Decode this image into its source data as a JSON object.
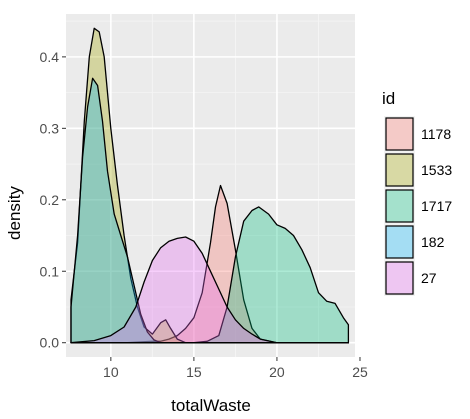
{
  "chart_data": {
    "type": "area",
    "xlabel": "totalWaste",
    "ylabel": "density",
    "xlim": [
      7.3,
      24.7
    ],
    "ylim": [
      -0.02,
      0.46
    ],
    "x_ticks": [
      10,
      15,
      20,
      25
    ],
    "y_ticks": [
      0.0,
      0.1,
      0.2,
      0.3,
      0.4
    ],
    "x_tick_labels": [
      "10",
      "15",
      "20",
      "25"
    ],
    "y_tick_labels": [
      "0.0",
      "0.1",
      "0.2",
      "0.3",
      "0.4"
    ],
    "grid": true,
    "legend": {
      "title": "id",
      "position": "right",
      "entries": [
        "1178",
        "1533",
        "1717",
        "182",
        "27"
      ]
    },
    "series": [
      {
        "name": "1178",
        "color": "#f8766d",
        "points": [
          [
            7.6,
            0.0
          ],
          [
            9,
            0.0
          ],
          [
            11,
            0.0
          ],
          [
            12.5,
            0.002
          ],
          [
            13,
            0.002
          ],
          [
            13.5,
            0.005
          ],
          [
            14,
            0.01
          ],
          [
            14.5,
            0.02
          ],
          [
            15,
            0.035
          ],
          [
            15.5,
            0.07
          ],
          [
            16,
            0.14
          ],
          [
            16.3,
            0.19
          ],
          [
            16.6,
            0.22
          ],
          [
            17,
            0.195
          ],
          [
            17.5,
            0.13
          ],
          [
            18,
            0.06
          ],
          [
            18.5,
            0.02
          ],
          [
            19,
            0.005
          ],
          [
            20,
            0.0
          ],
          [
            24.3,
            0.0
          ]
        ]
      },
      {
        "name": "1533",
        "color": "#a3a500",
        "points": [
          [
            7.6,
            0.06
          ],
          [
            8,
            0.14
          ],
          [
            8.4,
            0.31
          ],
          [
            8.7,
            0.4
          ],
          [
            9.0,
            0.44
          ],
          [
            9.3,
            0.435
          ],
          [
            9.6,
            0.4
          ],
          [
            10.0,
            0.3
          ],
          [
            10.4,
            0.22
          ],
          [
            10.8,
            0.15
          ],
          [
            11.2,
            0.09
          ],
          [
            11.6,
            0.05
          ],
          [
            12.0,
            0.022
          ],
          [
            12.5,
            0.012
          ],
          [
            13.0,
            0.028
          ],
          [
            13.3,
            0.032
          ],
          [
            13.6,
            0.02
          ],
          [
            14.0,
            0.005
          ],
          [
            14.5,
            0.0
          ],
          [
            24.3,
            0.0
          ]
        ]
      },
      {
        "name": "1717",
        "color": "#00bf7d",
        "points": [
          [
            7.6,
            0.0
          ],
          [
            12,
            0.0
          ],
          [
            15,
            0.0
          ],
          [
            15.8,
            0.002
          ],
          [
            16.5,
            0.01
          ],
          [
            17,
            0.05
          ],
          [
            17.5,
            0.12
          ],
          [
            18,
            0.17
          ],
          [
            18.5,
            0.185
          ],
          [
            18.9,
            0.19
          ],
          [
            19.5,
            0.18
          ],
          [
            20,
            0.165
          ],
          [
            20.5,
            0.16
          ],
          [
            21,
            0.15
          ],
          [
            21.5,
            0.13
          ],
          [
            22,
            0.105
          ],
          [
            22.5,
            0.07
          ],
          [
            23,
            0.058
          ],
          [
            23.5,
            0.055
          ],
          [
            24,
            0.035
          ],
          [
            24.3,
            0.025
          ],
          [
            24.3,
            0.0
          ]
        ]
      },
      {
        "name": "182",
        "color": "#00b0f6",
        "points": [
          [
            7.6,
            0.05
          ],
          [
            8,
            0.15
          ],
          [
            8.3,
            0.26
          ],
          [
            8.6,
            0.33
          ],
          [
            8.9,
            0.37
          ],
          [
            9.2,
            0.36
          ],
          [
            9.5,
            0.31
          ],
          [
            9.8,
            0.24
          ],
          [
            10.2,
            0.18
          ],
          [
            10.6,
            0.15
          ],
          [
            11,
            0.12
          ],
          [
            11.4,
            0.08
          ],
          [
            11.8,
            0.04
          ],
          [
            12.2,
            0.015
          ],
          [
            12.6,
            0.004
          ],
          [
            13,
            0.0
          ],
          [
            24.3,
            0.0
          ]
        ]
      },
      {
        "name": "27",
        "color": "#e76bf3",
        "points": [
          [
            7.6,
            0.0
          ],
          [
            9,
            0.003
          ],
          [
            10,
            0.01
          ],
          [
            10.8,
            0.022
          ],
          [
            11.5,
            0.05
          ],
          [
            12,
            0.085
          ],
          [
            12.5,
            0.115
          ],
          [
            13,
            0.133
          ],
          [
            13.5,
            0.142
          ],
          [
            14,
            0.146
          ],
          [
            14.5,
            0.148
          ],
          [
            15,
            0.142
          ],
          [
            15.5,
            0.125
          ],
          [
            16,
            0.1
          ],
          [
            16.5,
            0.075
          ],
          [
            17,
            0.05
          ],
          [
            17.5,
            0.032
          ],
          [
            18,
            0.02
          ],
          [
            18.5,
            0.012
          ],
          [
            19,
            0.005
          ],
          [
            20,
            0.0
          ],
          [
            24.3,
            0.0
          ]
        ]
      }
    ]
  }
}
